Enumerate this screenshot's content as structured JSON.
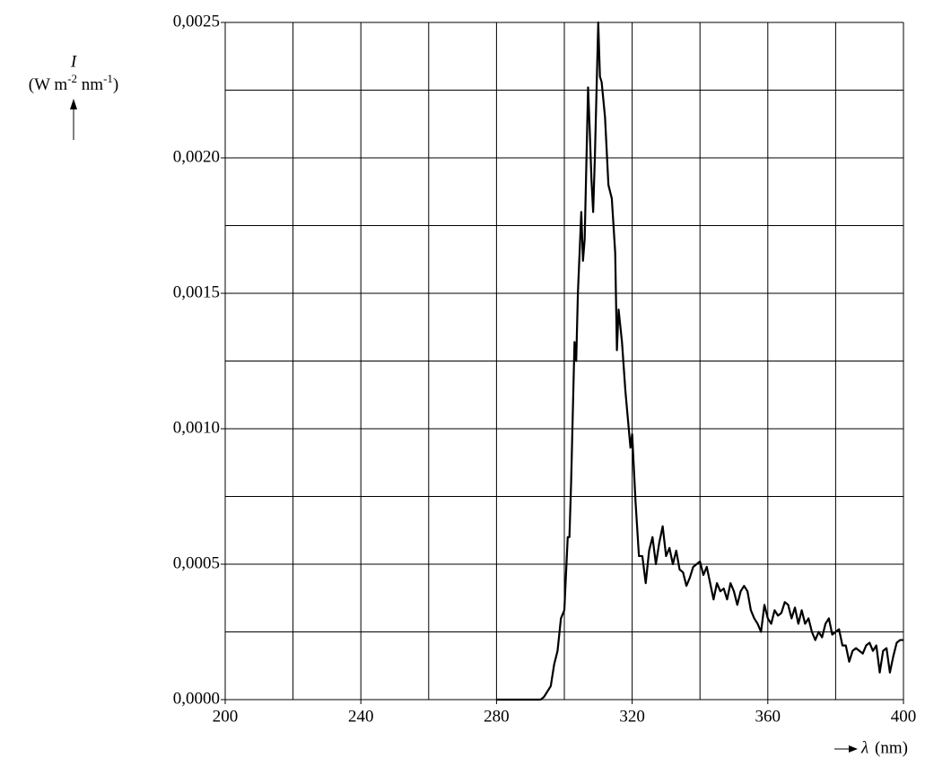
{
  "chart_data": {
    "type": "line",
    "ylabel_symbol": "I",
    "ylabel_unit": [
      "(W m",
      "-2",
      " nm",
      "-1",
      ")"
    ],
    "xlabel_symbol": "λ",
    "xlabel_unit": "(nm)",
    "xlim": [
      200,
      400
    ],
    "ylim": [
      0,
      0.0025
    ],
    "xticks": [
      200,
      240,
      280,
      320,
      360,
      400
    ],
    "yticks": [
      {
        "value": 0,
        "label": "0,0000"
      },
      {
        "value": 0.0005,
        "label": "0,0005"
      },
      {
        "value": 0.001,
        "label": "0,0010"
      },
      {
        "value": 0.0015,
        "label": "0,0015"
      },
      {
        "value": 0.002,
        "label": "0,0020"
      },
      {
        "value": 0.0025,
        "label": "0,0025"
      }
    ],
    "xgrid": [
      200,
      220,
      240,
      260,
      280,
      300,
      320,
      340,
      360,
      380,
      400
    ],
    "ygrid": [
      0,
      0.00025,
      0.0005,
      0.00075,
      0.001,
      0.00125,
      0.0015,
      0.00175,
      0.002,
      0.00225,
      0.0025
    ],
    "grid": true,
    "series": [
      {
        "name": null,
        "color": "#000000",
        "x": [
          280,
          290,
          293,
          294,
          295,
          296,
          297,
          298,
          299,
          300,
          301,
          301.5,
          302,
          303,
          303.5,
          304,
          305,
          305.5,
          306,
          307,
          307.5,
          308,
          308.5,
          309,
          310,
          310.5,
          311,
          312,
          313,
          314,
          315,
          315.5,
          316,
          317,
          318,
          319,
          319.5,
          320,
          321,
          322,
          323,
          324,
          325,
          326,
          327,
          328,
          329,
          330,
          331,
          332,
          333,
          334,
          335,
          336,
          337,
          338,
          339,
          340,
          341,
          342,
          343,
          344,
          345,
          346,
          347,
          348,
          349,
          350,
          351,
          352,
          353,
          354,
          355,
          356,
          357,
          358,
          359,
          360,
          361,
          362,
          363,
          364,
          365,
          366,
          367,
          368,
          369,
          370,
          371,
          372,
          373,
          374,
          375,
          376,
          377,
          378,
          379,
          380,
          381,
          382,
          383,
          384,
          385,
          386,
          387,
          388,
          389,
          390,
          391,
          392,
          393,
          394,
          395,
          396,
          397,
          398,
          399,
          400
        ],
        "values": [
          0,
          0,
          0,
          1e-05,
          3e-05,
          5e-05,
          0.00013,
          0.00018,
          0.0003,
          0.00033,
          0.0006,
          0.0006,
          0.0008,
          0.00132,
          0.00125,
          0.0015,
          0.0018,
          0.00162,
          0.0017,
          0.00226,
          0.0021,
          0.00192,
          0.0018,
          0.002,
          0.0025,
          0.0023,
          0.00228,
          0.00215,
          0.0019,
          0.00185,
          0.00165,
          0.00129,
          0.00144,
          0.00132,
          0.00114,
          0.001,
          0.00093,
          0.00098,
          0.00073,
          0.00053,
          0.00053,
          0.00043,
          0.00055,
          0.0006,
          0.0005,
          0.00058,
          0.00064,
          0.00053,
          0.00056,
          0.0005,
          0.00055,
          0.00048,
          0.00047,
          0.00042,
          0.00045,
          0.00049,
          0.0005,
          0.00051,
          0.00046,
          0.00049,
          0.00043,
          0.00037,
          0.00043,
          0.0004,
          0.00041,
          0.00037,
          0.00043,
          0.0004,
          0.00035,
          0.0004,
          0.00042,
          0.0004,
          0.00033,
          0.0003,
          0.00028,
          0.00025,
          0.00035,
          0.0003,
          0.00028,
          0.00033,
          0.00031,
          0.00032,
          0.00036,
          0.00035,
          0.0003,
          0.00034,
          0.00028,
          0.00033,
          0.00028,
          0.0003,
          0.00025,
          0.00022,
          0.00025,
          0.00023,
          0.00028,
          0.0003,
          0.00024,
          0.00025,
          0.00026,
          0.0002,
          0.0002,
          0.00014,
          0.00018,
          0.00019,
          0.00018,
          0.00017,
          0.0002,
          0.00021,
          0.00018,
          0.0002,
          0.0001,
          0.00018,
          0.00019,
          0.0001,
          0.00016,
          0.00021,
          0.00022,
          0.00022
        ]
      }
    ]
  }
}
